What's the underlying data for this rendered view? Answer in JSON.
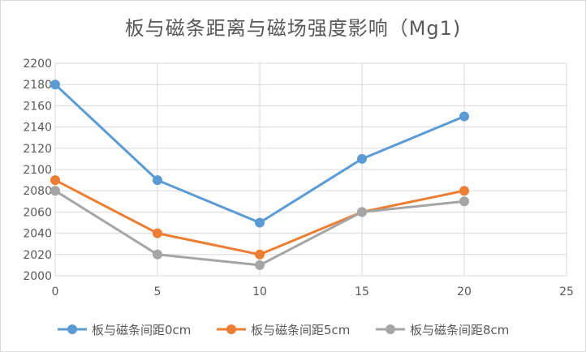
{
  "chart_data": {
    "type": "line",
    "title": "板与磁条距离与磁场强度影响（Mg1)",
    "xlabel": "",
    "ylabel": "",
    "x": [
      0,
      5,
      10,
      15,
      20
    ],
    "xlim": [
      0,
      25
    ],
    "xticks": [
      0,
      5,
      10,
      15,
      20,
      25
    ],
    "ylim": [
      2000,
      2200
    ],
    "yticks": [
      2000,
      2020,
      2040,
      2060,
      2080,
      2100,
      2120,
      2140,
      2160,
      2180,
      2200
    ],
    "grid": true,
    "legend_position": "bottom",
    "series": [
      {
        "name": "板与磁条间距0cm",
        "color": "#5b9bd5",
        "values": [
          2180,
          2090,
          2050,
          2110,
          2150
        ]
      },
      {
        "name": "板与磁条间距5cm",
        "color": "#ed7d31",
        "values": [
          2090,
          2040,
          2020,
          2060,
          2080
        ]
      },
      {
        "name": "板与磁条间距8cm",
        "color": "#a5a5a5",
        "values": [
          2080,
          2020,
          2010,
          2060,
          2070
        ]
      }
    ]
  }
}
